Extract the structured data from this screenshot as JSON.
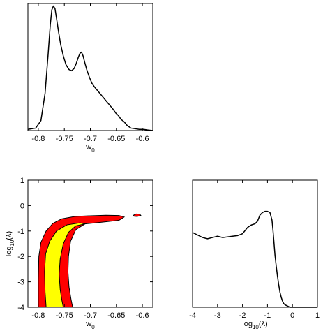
{
  "chart_data": [
    {
      "id": "marginal_w0",
      "type": "line",
      "xlabel": "w",
      "xlabel_subscript": "0",
      "ylabel": "",
      "xlim": [
        -0.82,
        -0.58
      ],
      "ylim": [
        0,
        1.02
      ],
      "xticks": [
        -0.8,
        -0.75,
        -0.7,
        -0.65,
        -0.6
      ],
      "xtick_labels": [
        "-0.8",
        "-0.75",
        "-0.7",
        "-0.65",
        "-0.6"
      ],
      "yticks": [],
      "grid": false,
      "x": [
        -0.82,
        -0.805,
        -0.795,
        -0.787,
        -0.781,
        -0.777,
        -0.774,
        -0.771,
        -0.768,
        -0.765,
        -0.761,
        -0.757,
        -0.752,
        -0.747,
        -0.741,
        -0.736,
        -0.731,
        -0.727,
        -0.723,
        -0.72,
        -0.717,
        -0.714,
        -0.711,
        -0.707,
        -0.702,
        -0.697,
        -0.692,
        -0.686,
        -0.68,
        -0.674,
        -0.668,
        -0.662,
        -0.656,
        -0.651,
        -0.646,
        -0.641,
        -0.635,
        -0.629,
        -0.622,
        -0.614,
        -0.606,
        -0.598,
        -0.59,
        -0.58
      ],
      "y": [
        0.01,
        0.02,
        0.08,
        0.3,
        0.62,
        0.85,
        0.97,
        1.0,
        0.98,
        0.9,
        0.79,
        0.69,
        0.6,
        0.53,
        0.49,
        0.48,
        0.5,
        0.54,
        0.59,
        0.62,
        0.63,
        0.6,
        0.55,
        0.49,
        0.43,
        0.38,
        0.35,
        0.32,
        0.29,
        0.26,
        0.23,
        0.2,
        0.17,
        0.14,
        0.12,
        0.09,
        0.07,
        0.04,
        0.02,
        0.015,
        0.01,
        0.01,
        0.005,
        0.0
      ]
    },
    {
      "id": "joint_w0_loglambda",
      "type": "contour",
      "xlabel": "w",
      "xlabel_subscript": "0",
      "ylabel": "log",
      "ylabel_subscript": "10",
      "ylabel_suffix": "(λ)",
      "xlim": [
        -0.82,
        -0.58
      ],
      "ylim": [
        -4,
        1
      ],
      "xticks": [
        -0.8,
        -0.75,
        -0.7,
        -0.65,
        -0.6
      ],
      "xtick_labels": [
        "-0.8",
        "-0.75",
        "-0.7",
        "-0.65",
        "-0.6"
      ],
      "yticks": [
        1,
        0,
        -1,
        -2,
        -3,
        -4
      ],
      "ytick_labels": [
        "1",
        "0",
        "-1",
        "-2",
        "-3",
        "-4"
      ],
      "grid": false,
      "regions": [
        {
          "level": "outer",
          "color": "#ff0000",
          "polygon": [
            [
              -0.8,
              -4
            ],
            [
              -0.8,
              -2.9
            ],
            [
              -0.799,
              -2.0
            ],
            [
              -0.795,
              -1.45
            ],
            [
              -0.785,
              -1.0
            ],
            [
              -0.772,
              -0.7
            ],
            [
              -0.755,
              -0.52
            ],
            [
              -0.73,
              -0.43
            ],
            [
              -0.7,
              -0.4
            ],
            [
              -0.67,
              -0.38
            ],
            [
              -0.645,
              -0.39
            ],
            [
              -0.635,
              -0.45
            ],
            [
              -0.645,
              -0.58
            ],
            [
              -0.68,
              -0.66
            ],
            [
              -0.71,
              -0.72
            ],
            [
              -0.728,
              -0.95
            ],
            [
              -0.738,
              -1.4
            ],
            [
              -0.742,
              -2.0
            ],
            [
              -0.743,
              -2.6
            ],
            [
              -0.741,
              -3.2
            ],
            [
              -0.737,
              -3.7
            ],
            [
              -0.734,
              -4
            ]
          ]
        },
        {
          "level": "outer_island",
          "color": "#ff0000",
          "polygon": [
            [
              -0.617,
              -0.38
            ],
            [
              -0.612,
              -0.33
            ],
            [
              -0.605,
              -0.34
            ],
            [
              -0.603,
              -0.39
            ],
            [
              -0.61,
              -0.43
            ],
            [
              -0.616,
              -0.42
            ]
          ]
        },
        {
          "level": "inner",
          "color": "#ffff00",
          "polygon": [
            [
              -0.785,
              -4
            ],
            [
              -0.787,
              -3.4
            ],
            [
              -0.788,
              -2.6
            ],
            [
              -0.786,
              -1.9
            ],
            [
              -0.778,
              -1.4
            ],
            [
              -0.765,
              -1.0
            ],
            [
              -0.745,
              -0.76
            ],
            [
              -0.72,
              -0.68
            ],
            [
              -0.71,
              -0.72
            ],
            [
              -0.728,
              -0.8
            ],
            [
              -0.742,
              -1.05
            ],
            [
              -0.752,
              -1.5
            ],
            [
              -0.758,
              -2.1
            ],
            [
              -0.76,
              -2.7
            ],
            [
              -0.758,
              -3.3
            ],
            [
              -0.755,
              -3.7
            ],
            [
              -0.752,
              -4
            ]
          ]
        }
      ]
    },
    {
      "id": "marginal_loglambda",
      "type": "line",
      "xlabel": "log",
      "xlabel_subscript": "10",
      "xlabel_suffix": "(λ)",
      "ylabel": "",
      "xlim": [
        -4,
        1
      ],
      "ylim": [
        0,
        1.02
      ],
      "xticks": [
        -4,
        -3,
        -2,
        -1,
        0,
        1
      ],
      "xtick_labels": [
        "-4",
        "-3",
        "-2",
        "-1",
        "0",
        "1"
      ],
      "yticks": [],
      "grid": false,
      "x": [
        -4.0,
        -3.8,
        -3.6,
        -3.4,
        -3.2,
        -3.0,
        -2.8,
        -2.6,
        -2.4,
        -2.2,
        -2.0,
        -1.8,
        -1.65,
        -1.5,
        -1.4,
        -1.3,
        -1.2,
        -1.1,
        -1.0,
        -0.9,
        -0.82,
        -0.78,
        -0.74,
        -0.7,
        -0.65,
        -0.6,
        -0.55,
        -0.5,
        -0.45,
        -0.4,
        -0.35,
        -0.3,
        -0.2,
        -0.1,
        0.0,
        1.0
      ],
      "y": [
        0.6,
        0.58,
        0.56,
        0.55,
        0.56,
        0.57,
        0.56,
        0.565,
        0.57,
        0.575,
        0.59,
        0.64,
        0.66,
        0.67,
        0.69,
        0.74,
        0.76,
        0.77,
        0.77,
        0.76,
        0.7,
        0.62,
        0.52,
        0.42,
        0.33,
        0.25,
        0.18,
        0.12,
        0.08,
        0.05,
        0.03,
        0.02,
        0.01,
        0.0,
        0.0,
        0.0
      ]
    }
  ]
}
